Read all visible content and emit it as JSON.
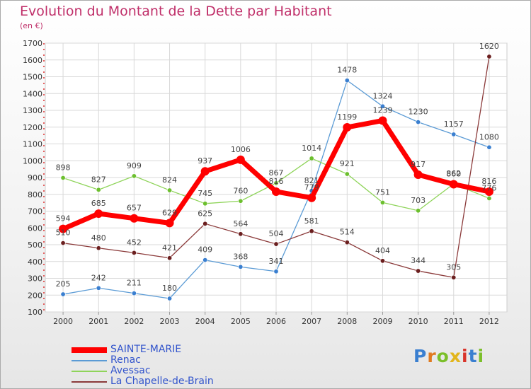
{
  "title": "Evolution du Montant de la Dette par Habitant",
  "unit_label": "(en €)",
  "logo": {
    "text": "Proxiti",
    "letters": [
      {
        "ch": "P",
        "color": "#3a7fd0"
      },
      {
        "ch": "r",
        "color": "#e07a1f"
      },
      {
        "ch": "o",
        "color": "#7bbf2a"
      },
      {
        "ch": "x",
        "color": "#e2b51b"
      },
      {
        "ch": "i",
        "color": "#d9342b"
      },
      {
        "ch": "t",
        "color": "#3a7fd0"
      },
      {
        "ch": "i",
        "color": "#7bbf2a"
      }
    ]
  },
  "chart_data": {
    "type": "line",
    "categories": [
      "2000",
      "2001",
      "2002",
      "2003",
      "2004",
      "2005",
      "2006",
      "2007",
      "2008",
      "2009",
      "2010",
      "2011",
      "2012"
    ],
    "ylim": [
      100,
      1700
    ],
    "yticks": [
      100,
      200,
      300,
      400,
      500,
      600,
      700,
      800,
      900,
      1000,
      1100,
      1200,
      1300,
      1400,
      1500,
      1600,
      1700
    ],
    "grid": true,
    "legend_position": "bottom-left",
    "series": [
      {
        "name": "Renac",
        "color": "#5b9bd5",
        "marker": "#3a7fd0",
        "width": 1.3,
        "values": [
          205,
          242,
          211,
          180,
          409,
          368,
          341,
          821,
          1478,
          1324,
          1230,
          1157,
          1080
        ],
        "labels": [
          "205",
          "242",
          "211",
          "180",
          "409",
          "368",
          "341",
          "821",
          "1478",
          "1324",
          "1230",
          "1157",
          "1080"
        ]
      },
      {
        "name": "Avessac",
        "color": "#8fd45a",
        "marker": "#6cbf2e",
        "width": 1.3,
        "values": [
          898,
          827,
          909,
          824,
          745,
          760,
          867,
          1014,
          921,
          751,
          703,
          862,
          776
        ],
        "labels": [
          "898",
          "827",
          "909",
          "824",
          "745",
          "760",
          "867",
          "1014",
          "921",
          "751",
          "703",
          "862",
          "776"
        ]
      },
      {
        "name": "La Chapelle-de-Brain",
        "color": "#8b3a3a",
        "marker": "#6b1f1f",
        "width": 1.3,
        "values": [
          510,
          480,
          452,
          421,
          625,
          564,
          504,
          581,
          514,
          404,
          344,
          305,
          1620
        ],
        "labels": [
          "510",
          "480",
          "452",
          "421",
          "625",
          "564",
          "504",
          "581",
          "514",
          "404",
          "344",
          "305",
          "1620"
        ]
      },
      {
        "name": "SAINTE-MARIE",
        "color": "#ff0000",
        "marker": "#ff0000",
        "width": 7,
        "values": [
          594,
          685,
          657,
          629,
          937,
          1006,
          816,
          779,
          1199,
          1239,
          917,
          860,
          816
        ],
        "labels": [
          "594",
          "685",
          "657",
          "629",
          "937",
          "1006",
          "816",
          "779",
          "1199",
          "1239",
          "917",
          "860",
          "816"
        ]
      }
    ],
    "legend": [
      "SAINTE-MARIE",
      "Renac",
      "Avessac",
      "La Chapelle-de-Brain"
    ]
  }
}
